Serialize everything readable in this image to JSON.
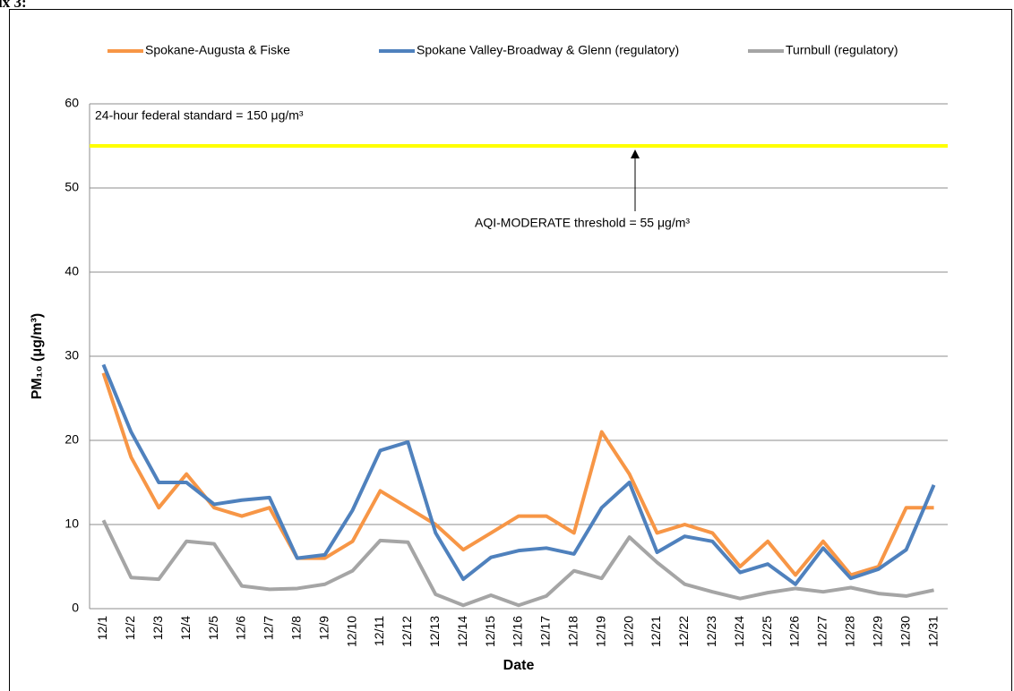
{
  "header": "ix 3:",
  "chart_data": {
    "type": "line",
    "xlabel": "Date",
    "ylabel": "PM₁₀ (μg/m³)",
    "annotations": [
      "24-hour federal standard = 150 μg/m³",
      "AQI-MODERATE threshold = 55 μg/m³"
    ],
    "threshold": 55,
    "threshold_color": "#ffff00",
    "categories": [
      "12/1",
      "12/2",
      "12/3",
      "12/4",
      "12/5",
      "12/6",
      "12/7",
      "12/8",
      "12/9",
      "12/10",
      "12/11",
      "12/12",
      "12/13",
      "12/14",
      "12/15",
      "12/16",
      "12/17",
      "12/18",
      "12/19",
      "12/20",
      "12/21",
      "12/22",
      "12/23",
      "12/24",
      "12/25",
      "12/26",
      "12/27",
      "12/28",
      "12/29",
      "12/30",
      "12/31"
    ],
    "series": [
      {
        "name": "Spokane-Augusta & Fiske",
        "color": "#f79646",
        "values": [
          28,
          18,
          12,
          16,
          12,
          11,
          12,
          6,
          6,
          8,
          14,
          12,
          10,
          7,
          9,
          11,
          11,
          9,
          21,
          16,
          9,
          10,
          9,
          5,
          8,
          4,
          8,
          4,
          5,
          12,
          12
        ]
      },
      {
        "name": "Spokane Valley-Broadway & Glenn (regulatory)",
        "color": "#4f81bd",
        "values": [
          29,
          21,
          15,
          15,
          12.4,
          12.9,
          13.2,
          6,
          6.4,
          11.7,
          18.8,
          19.8,
          9,
          3.5,
          6.1,
          6.9,
          7.2,
          6.5,
          12,
          15,
          6.7,
          8.6,
          8,
          4.3,
          5.3,
          2.9,
          7.2,
          3.6,
          4.7,
          7,
          14.7
        ]
      },
      {
        "name": "Turnbull (regulatory)",
        "color": "#a5a5a5",
        "values": [
          10.5,
          3.7,
          3.5,
          8,
          7.7,
          2.7,
          2.3,
          2.4,
          2.9,
          4.5,
          8.1,
          7.9,
          1.7,
          0.4,
          1.6,
          0.4,
          1.5,
          4.5,
          3.6,
          8.5,
          5.5,
          2.9,
          2,
          1.2,
          1.9,
          2.4,
          2,
          2.5,
          1.8,
          1.5,
          2.2
        ]
      }
    ],
    "ylim": [
      0,
      60
    ],
    "yticks": [
      0,
      10,
      20,
      30,
      40,
      50,
      60
    ],
    "grid": true
  }
}
